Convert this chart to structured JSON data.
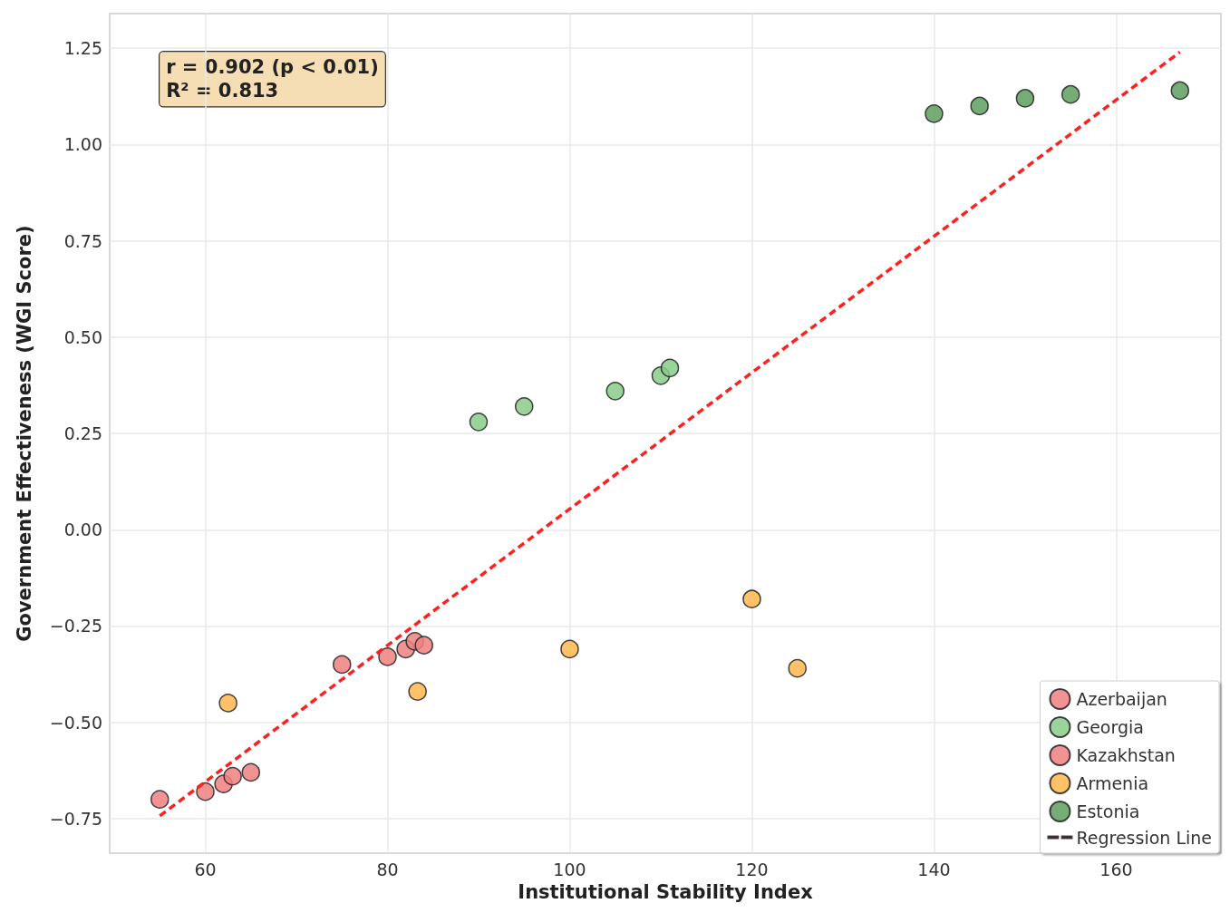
{
  "chart_data": {
    "type": "scatter",
    "xlabel": "Institutional Stability Index",
    "ylabel": "Government Effectiveness (WGI Score)",
    "xlim": [
      49.5,
      171.5
    ],
    "ylim": [
      -0.84,
      1.34
    ],
    "xticks": [
      60,
      80,
      100,
      120,
      140,
      160
    ],
    "yticks": [
      {
        "value": -0.75,
        "label": "−0.75"
      },
      {
        "value": -0.5,
        "label": "−0.50"
      },
      {
        "value": -0.25,
        "label": "−0.25"
      },
      {
        "value": 0,
        "label": "0.00"
      },
      {
        "value": 0.25,
        "label": "0.25"
      },
      {
        "value": 0.5,
        "label": "0.50"
      },
      {
        "value": 0.75,
        "label": "0.75"
      },
      {
        "value": 1,
        "label": "1.00"
      },
      {
        "value": 1.25,
        "label": "1.25"
      }
    ],
    "grid": true,
    "legend": "bottom right",
    "marker": "circle",
    "annotations": [
      "r = 0.902 (p < 0.01)\nR² = 0.813"
    ],
    "series": [
      {
        "name": "Azerbaijan",
        "color": "#f08080",
        "x": [
          55,
          60,
          62,
          63,
          65
        ],
        "values": [
          -0.7,
          -0.68,
          -0.66,
          -0.64,
          -0.63
        ]
      },
      {
        "name": "Georgia",
        "color": "#88cc88",
        "x": [
          90,
          95,
          105,
          110,
          111
        ],
        "values": [
          0.28,
          0.32,
          0.36,
          0.4,
          0.42
        ]
      },
      {
        "name": "Kazakhstan",
        "color": "#f08080",
        "x": [
          75,
          80,
          82,
          83,
          84
        ],
        "values": [
          -0.35,
          -0.33,
          -0.31,
          -0.29,
          -0.3
        ]
      },
      {
        "name": "Armenia",
        "color": "#ffb74d",
        "x": [
          62.5,
          83.3,
          100,
          120,
          125
        ],
        "values": [
          -0.45,
          -0.42,
          -0.31,
          -0.18,
          -0.36
        ]
      },
      {
        "name": "Estonia",
        "color": "#5e9e5e",
        "x": [
          140,
          145,
          150,
          155,
          167
        ],
        "values": [
          1.08,
          1.1,
          1.12,
          1.13,
          1.14
        ]
      },
      {
        "name": "Regression Line",
        "type": "line",
        "color": "#ff2020",
        "line_style": "dashed",
        "marker": "none",
        "x": [
          55,
          167
        ],
        "values": [
          -0.743,
          1.24
        ]
      }
    ]
  }
}
